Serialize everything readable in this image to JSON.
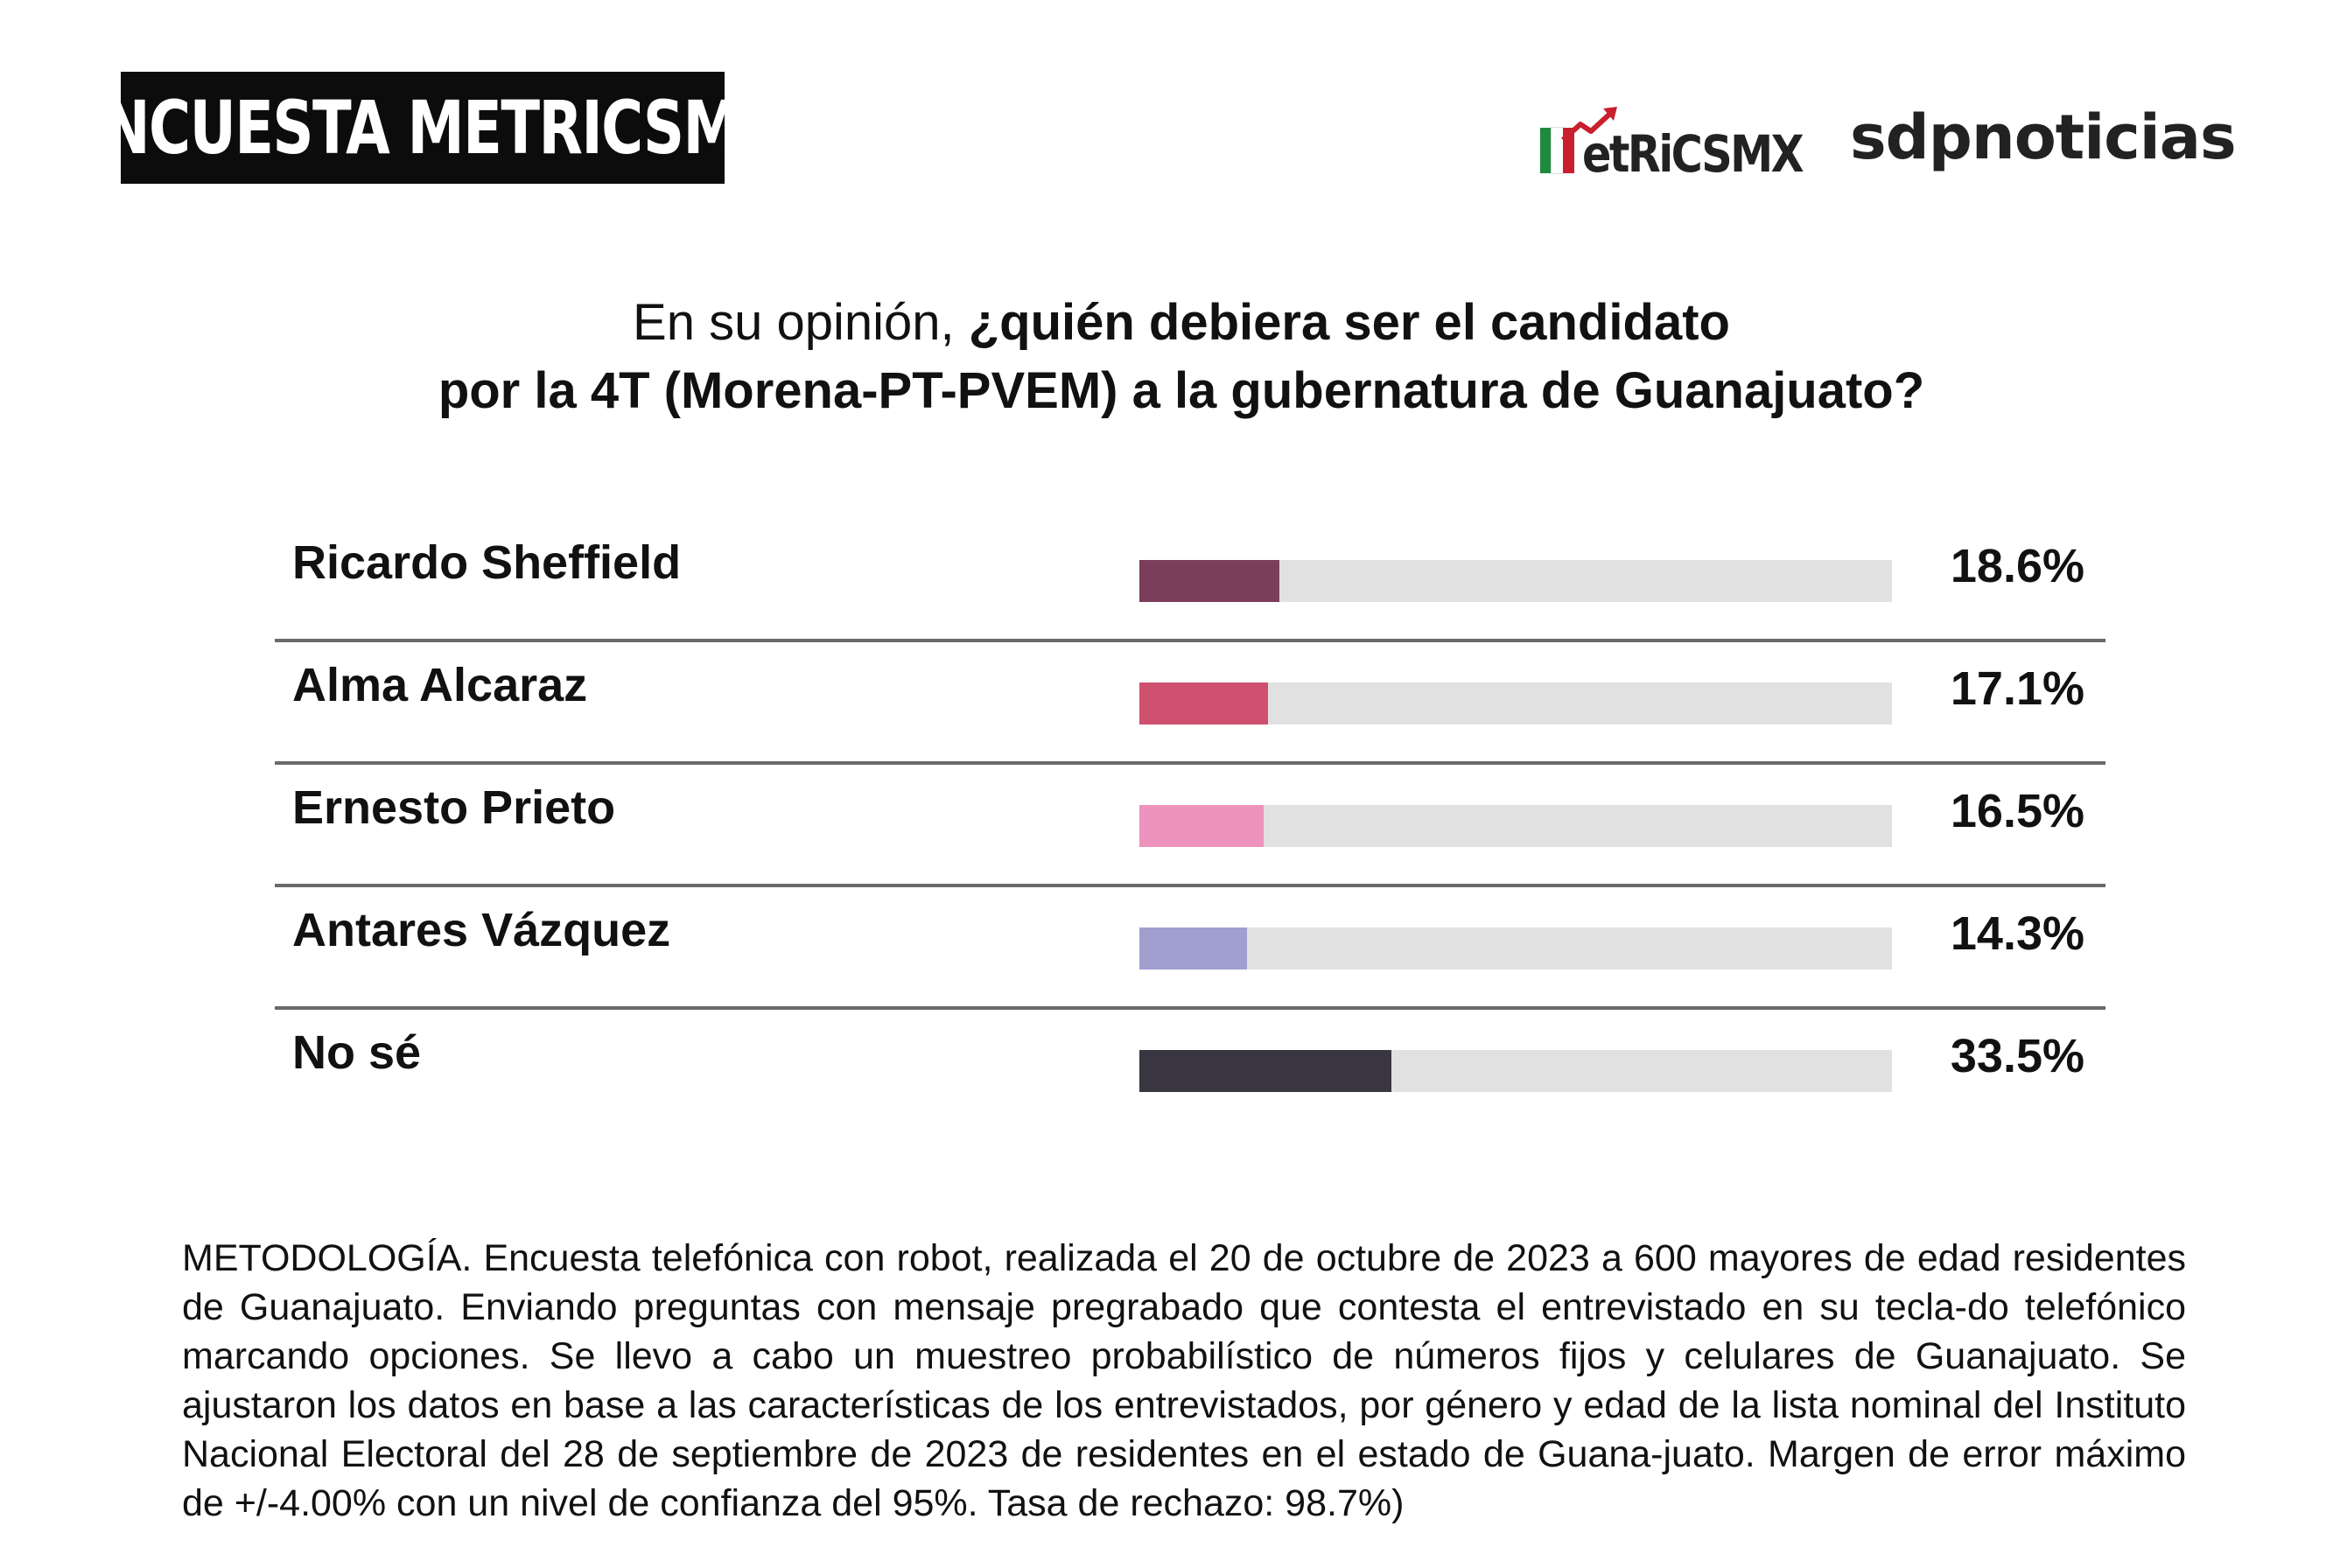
{
  "header": {
    "badge": "ENCUESTA METRICSMX",
    "logo_metrics": "etRiCSMX",
    "logo_sdp": "sdpnoticias"
  },
  "question": {
    "line1_normal": "En su opinión, ",
    "line1_bold": "¿quién debiera ser el candidato",
    "line2": "por la 4T (Morena-PT-PVEM) a la gubernatura de Guanajuato?"
  },
  "chart_data": {
    "type": "bar",
    "orientation": "horizontal",
    "title": "En su opinión, ¿quién debiera ser el candidato por la 4T (Morena-PT-PVEM) a la gubernatura de Guanajuato?",
    "categories": [
      "Ricardo Sheffield",
      "Alma Alcaraz",
      "Ernesto Prieto",
      "Antares Vázquez",
      "No sé"
    ],
    "values": [
      18.6,
      17.1,
      16.5,
      14.3,
      33.5
    ],
    "value_labels": [
      "18.6%",
      "17.1%",
      "16.5%",
      "14.3%",
      "33.5%"
    ],
    "colors": [
      "#7b3e5a",
      "#d0506f",
      "#ee93bd",
      "#a09fd0",
      "#393541"
    ],
    "track_color": "#e1e1e1",
    "unit": "%",
    "xlim": [
      0,
      100
    ]
  },
  "methodology": "METODOLOGÍA. Encuesta telefónica con robot, realizada el 20 de octubre de 2023 a 600 mayores de edad residentes de Guanajuato. Enviando preguntas con mensaje pregrabado que contesta el entrevistado en su tecla-do telefónico marcando opciones. Se llevo a cabo un muestreo probabilístico de números fijos y celulares de Guanajuato. Se ajustaron los datos en base a las características de los entrevistados, por género y edad de la lista nominal del Instituto Nacional Electoral del 28 de septiembre de 2023 de residentes en el estado de Guana-juato. Margen de error máximo de +/-4.00% con un nivel de confianza del 95%. Tasa de rechazo: 98.7%)",
  "colors": {
    "badge_bg": "#0c0c0c",
    "flag_green": "#1e8a3c",
    "flag_white": "#ffffff",
    "flag_red": "#c8202f",
    "arrow_red": "#c8202f"
  }
}
